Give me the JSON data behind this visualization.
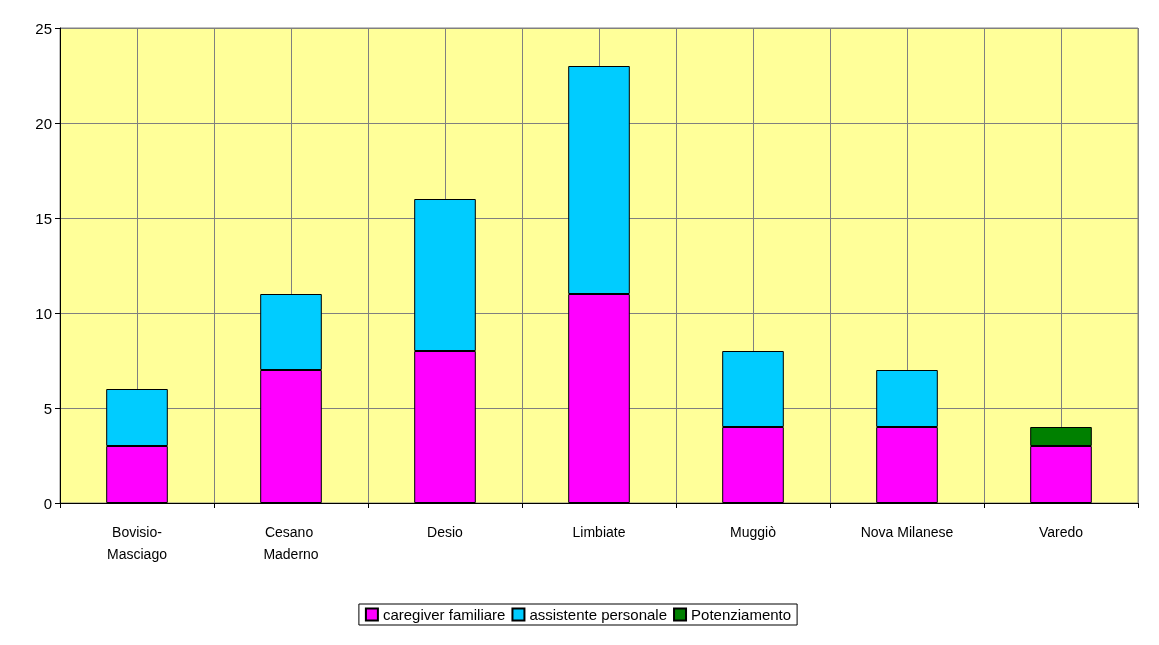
{
  "chart_data": {
    "type": "bar",
    "stacked": true,
    "categories": [
      "Bovisio-Masciago",
      "Cesano Maderno",
      "Desio",
      "Limbiate",
      "Muggiò",
      "Nova Milanese",
      "Varedo"
    ],
    "series": [
      {
        "name": "caregiver familiare",
        "color": "#ff00ff",
        "values": [
          3,
          7,
          8,
          11,
          4,
          4,
          3
        ]
      },
      {
        "name": "assistente personale",
        "color": "#00ccff",
        "values": [
          3,
          4,
          8,
          12,
          4,
          3,
          0
        ]
      },
      {
        "name": "Potenziamento",
        "color": "#008000",
        "values": [
          0,
          0,
          0,
          0,
          0,
          0,
          1
        ]
      }
    ],
    "ylim": [
      0,
      25
    ],
    "yticks": [
      0,
      5,
      10,
      15,
      20,
      25
    ],
    "grid": true,
    "legend": "bottom"
  }
}
